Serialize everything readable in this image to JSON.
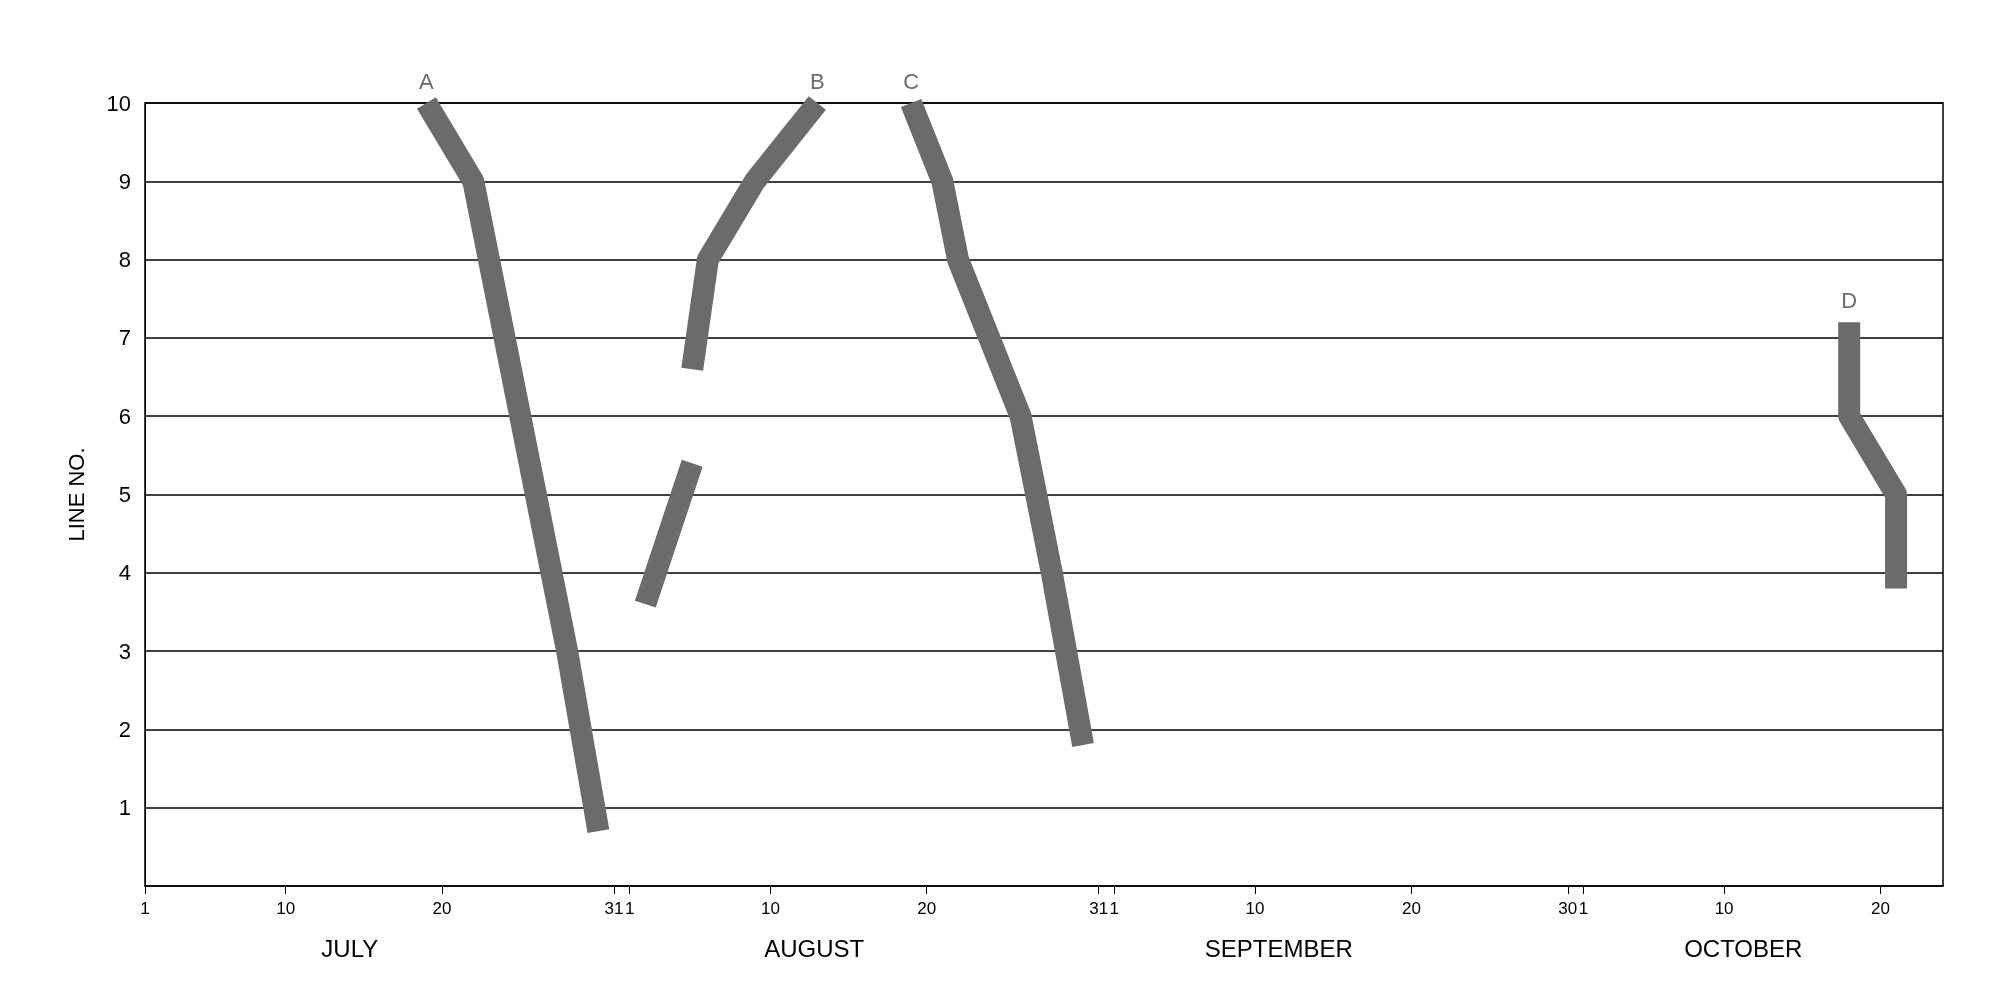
{
  "chart_data": {
    "type": "line",
    "ylabel": "LINE NO.",
    "xlim": [
      "--07-01",
      "--10-24"
    ],
    "ylim": [
      0,
      10
    ],
    "yticks": [
      1,
      2,
      3,
      4,
      5,
      6,
      7,
      8,
      9,
      10
    ],
    "xticks": [
      {
        "value": "--07-01",
        "label": "1"
      },
      {
        "value": "--07-10",
        "label": "10"
      },
      {
        "value": "--07-20",
        "label": "20"
      },
      {
        "value": "--07-31",
        "label": "31"
      },
      {
        "value": "--08-01",
        "label": "1"
      },
      {
        "value": "--08-10",
        "label": "10"
      },
      {
        "value": "--08-20",
        "label": "20"
      },
      {
        "value": "--08-31",
        "label": "31"
      },
      {
        "value": "--09-01",
        "label": "1"
      },
      {
        "value": "--09-10",
        "label": "10"
      },
      {
        "value": "--09-20",
        "label": "20"
      },
      {
        "value": "--09-30",
        "label": "30"
      },
      {
        "value": "--10-01",
        "label": "1"
      },
      {
        "value": "--10-10",
        "label": "10"
      },
      {
        "value": "--10-20",
        "label": "20"
      }
    ],
    "grid": "y",
    "legend": false,
    "marker": "none",
    "line_style": "solid",
    "series": [
      {
        "name": "A",
        "color": "#6b6b6b",
        "x": [
          "--07-19",
          "--07-22",
          "--07-24",
          "--07-26",
          "--07-28",
          "--07-30"
        ],
        "values": [
          10,
          9,
          7,
          5,
          3,
          0.7
        ]
      },
      {
        "name": "B",
        "color": "#6b6b6b",
        "x": [
          "--08-02",
          "--08-05",
          null,
          "--08-05",
          "--08-06",
          "--08-09",
          "--08-13"
        ],
        "values": [
          3.6,
          5.4,
          null,
          6.6,
          8,
          9,
          10
        ]
      },
      {
        "name": "C",
        "color": "#6b6b6b",
        "x": [
          "--08-19",
          "--08-21",
          "--08-22",
          "--08-24",
          "--08-26",
          "--08-28",
          "--08-30"
        ],
        "values": [
          10,
          9,
          8,
          7,
          6,
          4,
          1.8
        ]
      },
      {
        "name": "D",
        "color": "#6b6b6b",
        "x": [
          "--10-18",
          "--10-18",
          "--10-21",
          "--10-21"
        ],
        "values": [
          7.2,
          6,
          5,
          3.8
        ]
      }
    ],
    "annotations": [
      "JULY",
      "AUGUST",
      "SEPTEMBER",
      "OCTOBER"
    ]
  }
}
